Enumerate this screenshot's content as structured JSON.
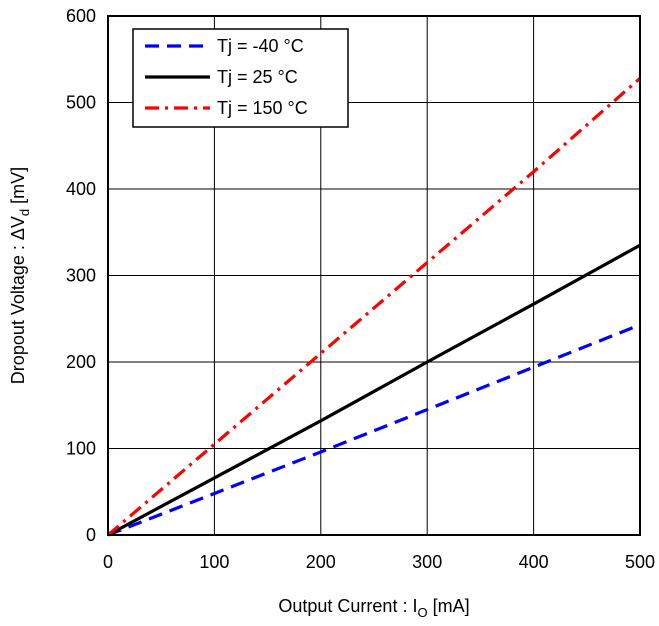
{
  "chart_data": {
    "type": "line",
    "xlabel_main": "Output Current : I",
    "xlabel_sub": "O",
    "xlabel_unit": " [mA]",
    "ylabel_main": "Dropout Voltage : ΔV",
    "ylabel_sub": "d",
    "ylabel_unit": " [mV]",
    "xlim": [
      0,
      500
    ],
    "ylim": [
      0,
      600
    ],
    "xticks": [
      0,
      100,
      200,
      300,
      400,
      500
    ],
    "yticks": [
      0,
      100,
      200,
      300,
      400,
      500,
      600
    ],
    "grid": true,
    "legend_position": "top-left",
    "series": [
      {
        "name": "Tj = -40 °C",
        "color": "#0000FF",
        "dash": "dash",
        "x": [
          0,
          100,
          200,
          300,
          400,
          500
        ],
        "y": [
          0,
          48,
          96,
          145,
          194,
          243
        ]
      },
      {
        "name": "Tj = 25 °C",
        "color": "#000000",
        "dash": "solid",
        "x": [
          0,
          100,
          200,
          300,
          400,
          500
        ],
        "y": [
          0,
          66,
          132,
          200,
          267,
          335
        ]
      },
      {
        "name": "Tj = 150 °C",
        "color": "#FF0000",
        "dash": "dashdot",
        "x": [
          0,
          100,
          200,
          300,
          400,
          500
        ],
        "y": [
          0,
          105,
          210,
          315,
          420,
          528
        ]
      }
    ]
  }
}
